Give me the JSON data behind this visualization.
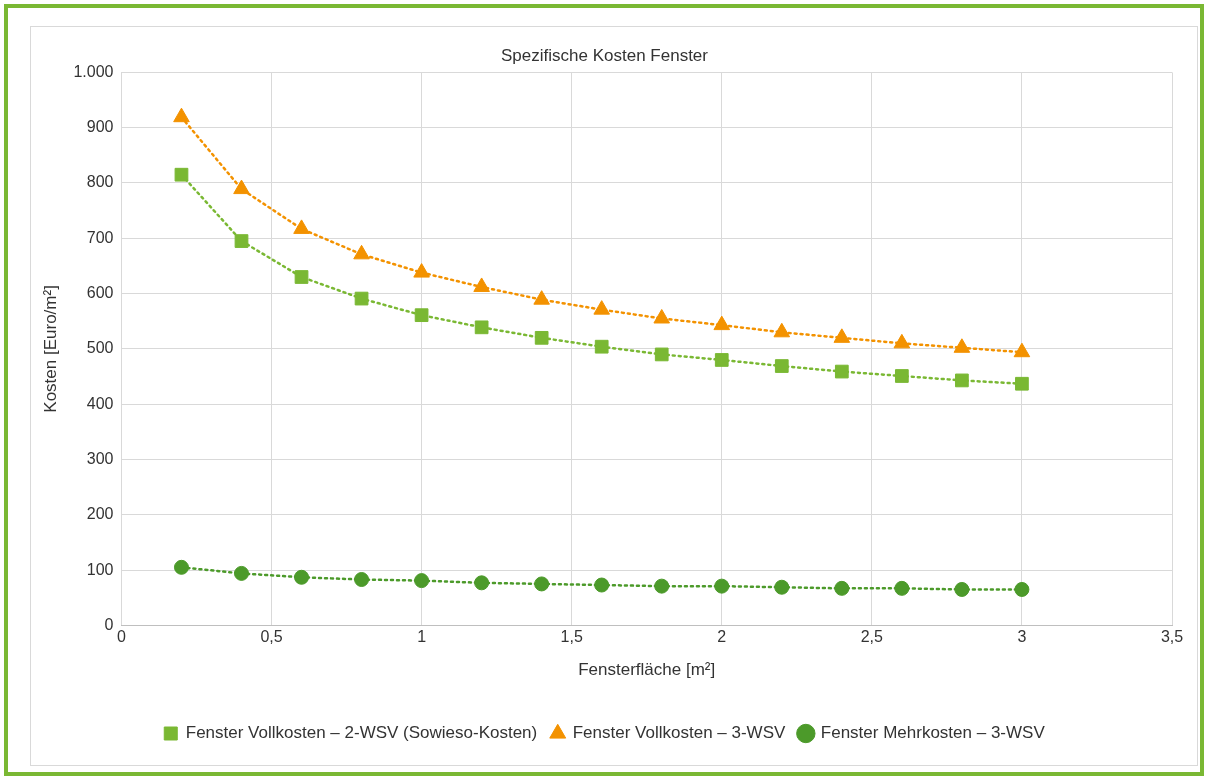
{
  "chart_data": {
    "type": "scatter",
    "title": "Spezifische Kosten Fenster",
    "xlabel": "Fensterfläche [m²]",
    "ylabel": "Kosten [Euro/m²]",
    "xlim": [
      0,
      3.5
    ],
    "xticks": [
      0,
      {
        "value": 0.5,
        "label": "0,5"
      },
      1,
      {
        "value": 1.5,
        "label": "1,5"
      },
      2,
      {
        "value": 2.5,
        "label": "2,5"
      },
      3,
      {
        "value": 3.5,
        "label": "3,5"
      }
    ],
    "ylim": [
      0,
      1000
    ],
    "yticks": [
      0,
      100,
      200,
      300,
      400,
      500,
      600,
      700,
      800,
      900,
      {
        "value": 1000,
        "label": "1.000"
      }
    ],
    "grid": true,
    "legend": "bottom",
    "x": [
      0.2,
      0.4,
      0.6,
      0.8,
      1.0,
      1.2,
      1.4,
      1.6,
      1.8,
      2.0,
      2.2,
      2.4,
      2.6,
      2.8,
      3.0
    ],
    "series": [
      {
        "type": "line",
        "color": "#7ab833",
        "line_style": "dotted",
        "marker": "none",
        "values": [
          815,
          695,
          630,
          591,
          561,
          539,
          520,
          504,
          490,
          480,
          469,
          459,
          451,
          443,
          437
        ]
      },
      {
        "type": "line",
        "color": "#f39200",
        "line_style": "dotted",
        "marker": "none",
        "values": [
          919,
          789,
          717,
          671,
          638,
          612,
          589,
          571,
          555,
          543,
          530,
          520,
          510,
          502,
          494
        ]
      },
      {
        "type": "line",
        "color": "#4c9a2a",
        "line_style": "dotted",
        "marker": "none",
        "values": [
          105,
          94,
          87,
          83,
          81,
          77,
          75,
          73,
          71,
          71,
          69,
          67,
          67,
          65,
          65
        ]
      },
      {
        "name": "Fenster Vollkosten – 2-WSV (Sowieso-Kosten)",
        "type": "scatter",
        "color": "#7ab833",
        "marker": "square",
        "values": [
          815,
          695,
          630,
          591,
          561,
          539,
          520,
          504,
          490,
          480,
          469,
          459,
          451,
          443,
          437
        ]
      },
      {
        "name": "Fenster Vollkosten – 3-WSV",
        "type": "scatter",
        "color": "#f39200",
        "marker": "triangle",
        "values": [
          919,
          789,
          717,
          671,
          638,
          612,
          589,
          571,
          555,
          543,
          530,
          520,
          510,
          502,
          494
        ]
      },
      {
        "name": "Fenster Mehrkosten – 3-WSV",
        "type": "scatter",
        "color": "#4c9a2a",
        "marker": "circle",
        "values": [
          105,
          94,
          87,
          83,
          81,
          77,
          75,
          73,
          71,
          71,
          69,
          67,
          67,
          65,
          65
        ]
      }
    ]
  }
}
